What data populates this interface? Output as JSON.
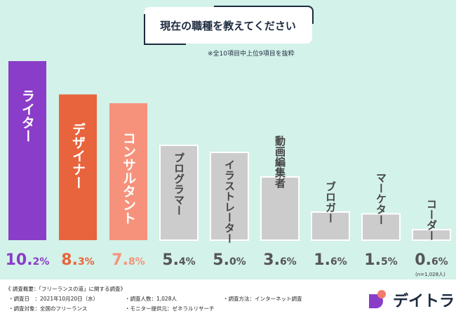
{
  "title": "現在の職種を教えてください",
  "note": "※全10項目中上位9項目を抜粋",
  "n_note": "(n=1,028人)",
  "chart_data": {
    "type": "bar",
    "title": "現在の職種を教えてください",
    "categories": [
      "ライター",
      "デザイナー",
      "コンサルタント",
      "プログラマー",
      "イラストレーター",
      "動画編集者",
      "ブロガー",
      "マーケター",
      "コーダー"
    ],
    "values": [
      10.2,
      8.3,
      7.8,
      5.4,
      5.0,
      3.6,
      1.6,
      1.5,
      0.6
    ],
    "value_labels": [
      [
        "10.",
        "2%"
      ],
      [
        "8.",
        "3%"
      ],
      [
        "7.",
        "8%"
      ],
      [
        "5.",
        "4%"
      ],
      [
        "5.",
        "0%"
      ],
      [
        "3.",
        "6%"
      ],
      [
        "1.",
        "6%"
      ],
      [
        "1.",
        "5%"
      ],
      [
        "0.",
        "6%"
      ]
    ],
    "colors": [
      "#8a3dc8",
      "#e8643c",
      "#f6927c",
      "#cccccc",
      "#cccccc",
      "#cccccc",
      "#cccccc",
      "#cccccc",
      "#cccccc"
    ],
    "label_colors": [
      "#8a3dc8",
      "#e8643c",
      "#f6927c",
      "#555555",
      "#555555",
      "#555555",
      "#555555",
      "#555555",
      "#555555"
    ],
    "ylim": [
      0,
      10.5
    ],
    "unit": "%"
  },
  "footer": {
    "heading": "《 調査概要：「フリーランスの道」に関する調査》",
    "date": "・調査日　：2021年10月20日（水）",
    "count": "・調査人数：1,028人",
    "method": "・調査方法：インターネット調査",
    "target": "・調査対象：全国のフリーランス",
    "provider": "・モニター提供元：ゼネラルリサーチ"
  },
  "logo": {
    "text": "デイトラ"
  }
}
